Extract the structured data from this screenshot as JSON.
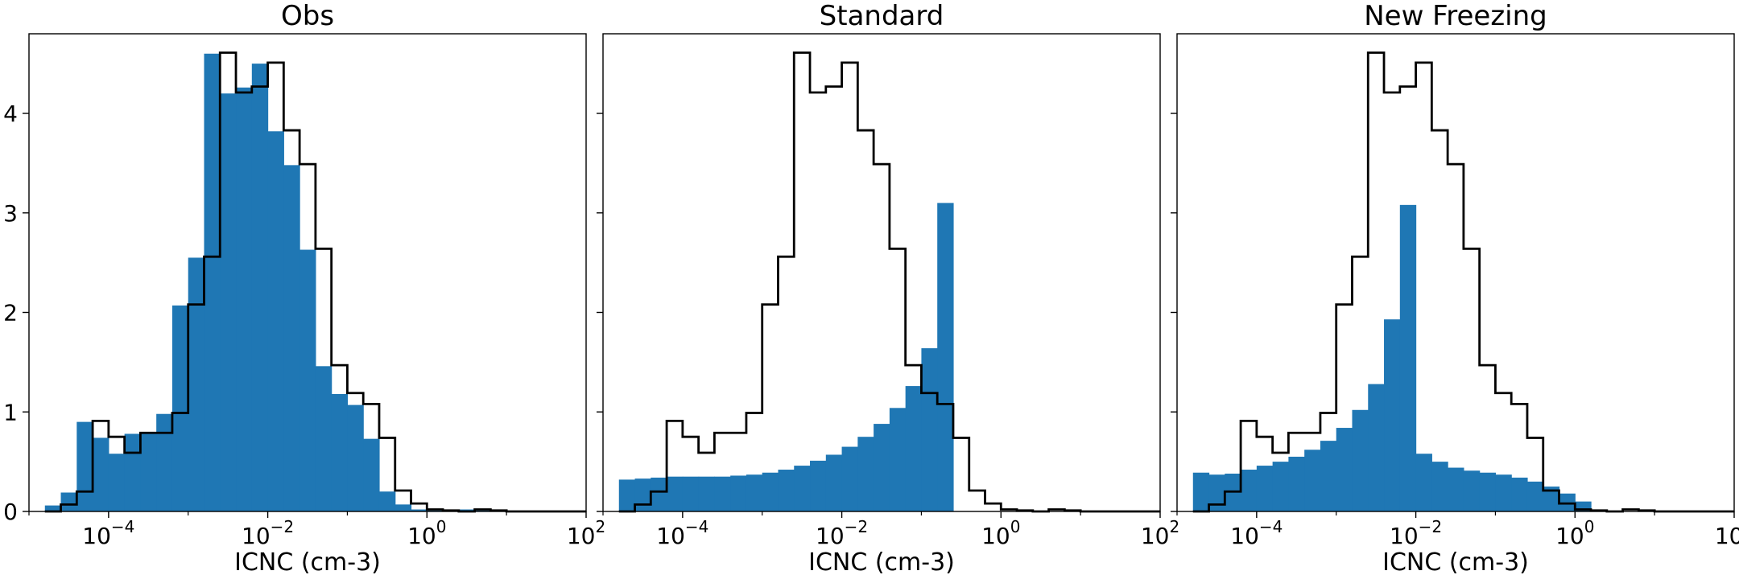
{
  "chart_data": [
    {
      "type": "histogram",
      "title": "Obs",
      "xlabel": "ICNC (cm-3)",
      "ylabel": "",
      "xscale": "log",
      "xlim": [
        1e-05,
        100.0
      ],
      "ylim": [
        0,
        4.8
      ],
      "x_ticks": [
        0.0001,
        0.01,
        1,
        100
      ],
      "y_ticks": [
        0,
        1,
        2,
        3,
        4
      ],
      "bins_log10": {
        "start": -4.8,
        "width": 0.2
      },
      "filled_values": [
        0.06,
        0.19,
        0.9,
        0.74,
        0.58,
        0.78,
        0.78,
        0.98,
        2.07,
        2.55,
        4.6,
        4.2,
        4.26,
        4.5,
        3.82,
        3.48,
        2.63,
        1.46,
        1.18,
        1.07,
        0.73,
        0.2,
        0.07,
        0.02,
        0.01,
        0.0,
        0.02,
        0.01,
        0.0,
        0.0,
        0.0,
        0.0,
        0.0,
        0.0
      ],
      "outline_values": [
        0.0,
        0.07,
        0.2,
        0.91,
        0.75,
        0.59,
        0.79,
        0.79,
        0.99,
        2.08,
        2.56,
        4.61,
        4.21,
        4.27,
        4.51,
        3.83,
        3.49,
        2.64,
        1.47,
        1.19,
        1.08,
        0.74,
        0.21,
        0.08,
        0.02,
        0.01,
        0.0,
        0.02,
        0.01,
        0.0,
        0.0,
        0.0,
        0.0,
        0.0
      ],
      "fill_color": "#1f77b4",
      "outline_color": "#000000"
    },
    {
      "type": "histogram",
      "title": "Standard",
      "xlabel": "ICNC (cm-3)",
      "ylabel": "",
      "xscale": "log",
      "xlim": [
        1e-05,
        100.0
      ],
      "ylim": [
        0,
        4.8
      ],
      "x_ticks": [
        0.0001,
        0.01,
        1,
        100
      ],
      "y_ticks": [
        0,
        1,
        2,
        3,
        4
      ],
      "bins_log10": {
        "start": -4.8,
        "width": 0.2
      },
      "filled_values": [
        0.32,
        0.33,
        0.34,
        0.35,
        0.35,
        0.35,
        0.35,
        0.36,
        0.37,
        0.39,
        0.42,
        0.46,
        0.51,
        0.57,
        0.65,
        0.75,
        0.88,
        1.04,
        1.26,
        1.64,
        3.1,
        0.0,
        0.0,
        0.0,
        0.0,
        0.0,
        0.0,
        0.0,
        0.0,
        0.0,
        0.0,
        0.0,
        0.0,
        0.0
      ],
      "outline_values": [
        0.0,
        0.07,
        0.2,
        0.91,
        0.75,
        0.59,
        0.79,
        0.79,
        0.99,
        2.08,
        2.56,
        4.61,
        4.21,
        4.27,
        4.51,
        3.83,
        3.49,
        2.64,
        1.47,
        1.19,
        1.08,
        0.74,
        0.21,
        0.08,
        0.02,
        0.01,
        0.0,
        0.02,
        0.01,
        0.0,
        0.0,
        0.0,
        0.0,
        0.0
      ],
      "fill_color": "#1f77b4",
      "outline_color": "#000000"
    },
    {
      "type": "histogram",
      "title": "New Freezing",
      "xlabel": "ICNC (cm-3)",
      "ylabel": "",
      "xscale": "log",
      "xlim": [
        1e-05,
        100.0
      ],
      "ylim": [
        0,
        4.8
      ],
      "x_ticks": [
        0.0001,
        0.01,
        1,
        100
      ],
      "y_ticks": [
        0,
        1,
        2,
        3,
        4
      ],
      "bins_log10": {
        "start": -4.8,
        "width": 0.2
      },
      "filled_values": [
        0.39,
        0.37,
        0.38,
        0.42,
        0.46,
        0.5,
        0.55,
        0.62,
        0.71,
        0.84,
        1.02,
        1.28,
        1.93,
        3.08,
        0.58,
        0.5,
        0.44,
        0.41,
        0.39,
        0.37,
        0.34,
        0.3,
        0.25,
        0.18,
        0.1,
        0.0,
        0.0,
        0.0,
        0.0,
        0.0,
        0.0,
        0.0,
        0.0,
        0.0
      ],
      "outline_values": [
        0.0,
        0.07,
        0.2,
        0.91,
        0.75,
        0.59,
        0.79,
        0.79,
        0.99,
        2.08,
        2.56,
        4.61,
        4.21,
        4.27,
        4.51,
        3.83,
        3.49,
        2.64,
        1.47,
        1.19,
        1.08,
        0.74,
        0.21,
        0.08,
        0.02,
        0.01,
        0.0,
        0.02,
        0.01,
        0.0,
        0.0,
        0.0,
        0.0,
        0.0
      ],
      "fill_color": "#1f77b4",
      "outline_color": "#000000"
    }
  ],
  "x_tick_labels": [
    {
      "base": "10",
      "exp": "−4"
    },
    {
      "base": "10",
      "exp": "−2"
    },
    {
      "base": "10",
      "exp": "0"
    },
    {
      "base": "10",
      "exp": "2"
    }
  ],
  "y_tick_labels": [
    "0",
    "1",
    "2",
    "3",
    "4"
  ]
}
